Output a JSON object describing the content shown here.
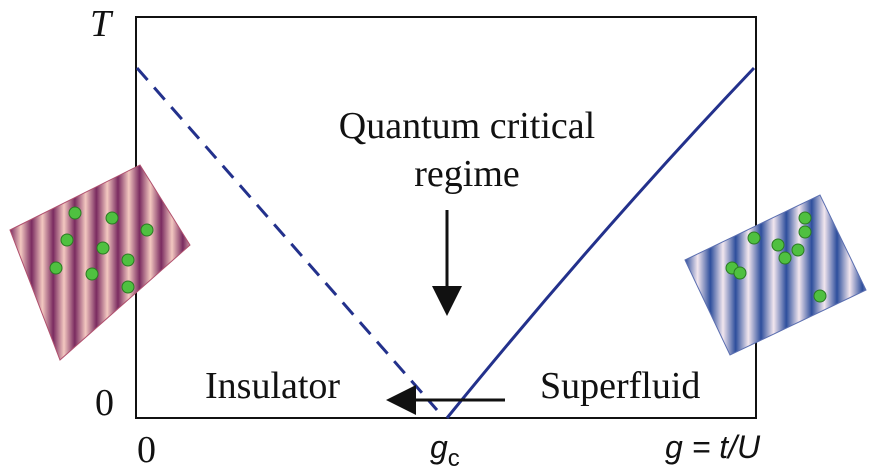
{
  "axes": {
    "y_label": "T",
    "y_zero": "0",
    "x_zero": "0",
    "x_critical": {
      "symbol": "g",
      "subscript": "c"
    },
    "x_label": "g = t/U"
  },
  "regime": {
    "lines": [
      "Quantum critical",
      "regime"
    ]
  },
  "phases": {
    "left": "Insulator",
    "right": "Superfluid"
  }
}
